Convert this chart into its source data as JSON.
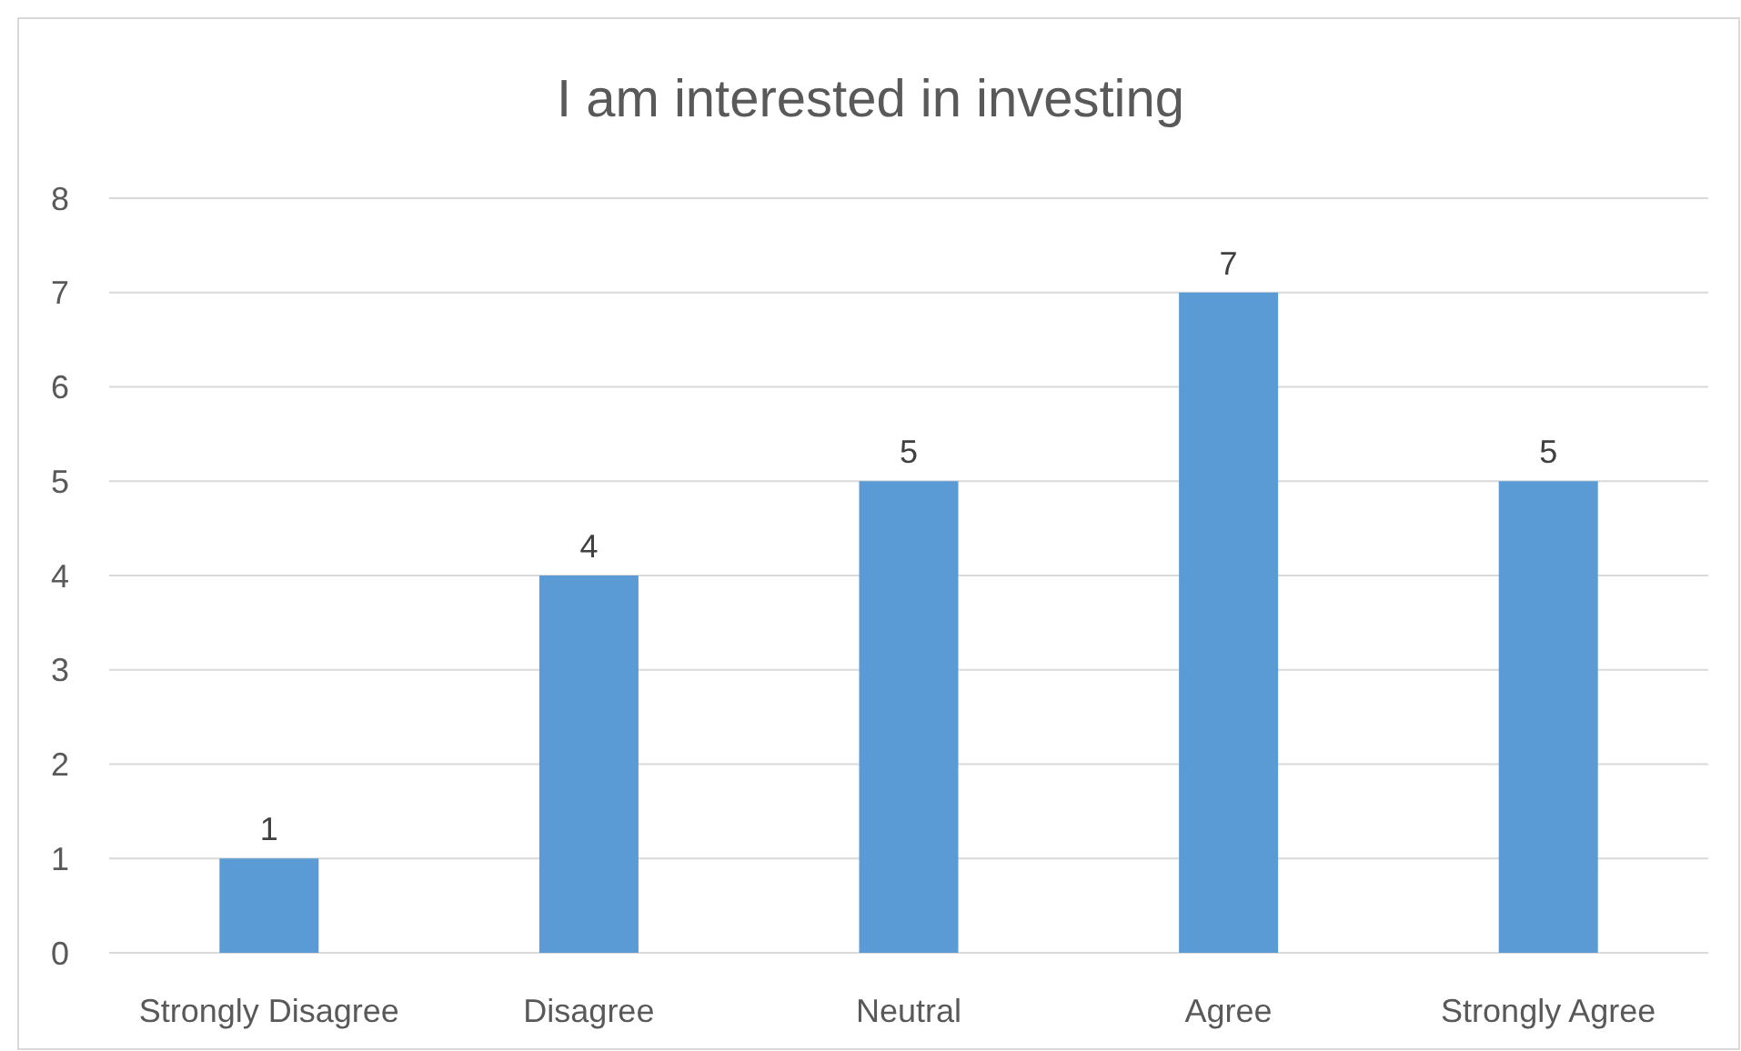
{
  "chart_data": {
    "type": "bar",
    "title": "I am interested in investing",
    "categories": [
      "Strongly Disagree",
      "Disagree",
      "Neutral",
      "Agree",
      "Strongly Agree"
    ],
    "values": [
      1,
      4,
      5,
      7,
      5
    ],
    "color": "#5b9bd5",
    "ylim": [
      0,
      8
    ],
    "yticks": [
      0,
      1,
      2,
      3,
      4,
      5,
      6,
      7,
      8
    ],
    "grid": "y",
    "data_labels": true
  }
}
